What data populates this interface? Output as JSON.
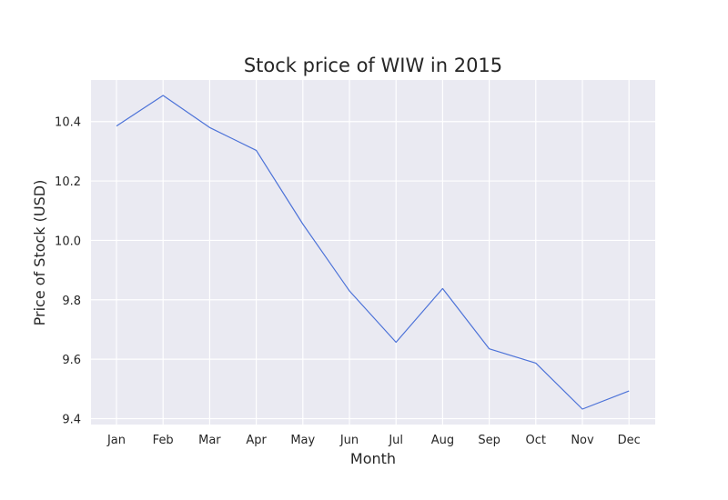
{
  "chart_data": {
    "type": "line",
    "title": "Stock price of WIW in 2015",
    "xlabel": "Month",
    "ylabel": "Price of Stock (USD)",
    "categories": [
      "Jan",
      "Feb",
      "Mar",
      "Apr",
      "May",
      "Jun",
      "Jul",
      "Aug",
      "Sep",
      "Oct",
      "Nov",
      "Dec"
    ],
    "series": [
      {
        "values": [
          10.385,
          10.488,
          10.38,
          10.303,
          10.055,
          9.83,
          9.657,
          9.838,
          9.635,
          9.587,
          9.432,
          9.493
        ]
      }
    ],
    "ylim": [
      9.38,
      10.54
    ],
    "yticks": [
      9.4,
      9.6,
      9.8,
      10.0,
      10.2,
      10.4
    ],
    "ytick_labels": [
      "9.4",
      "9.6",
      "9.8",
      "10.0",
      "10.2",
      "10.4"
    ],
    "grid": true,
    "legend": "none",
    "colors": {
      "line": "#4c72d8",
      "plot_background": "#eaeaf2",
      "grid": "#ffffff",
      "text": "#262626"
    }
  }
}
